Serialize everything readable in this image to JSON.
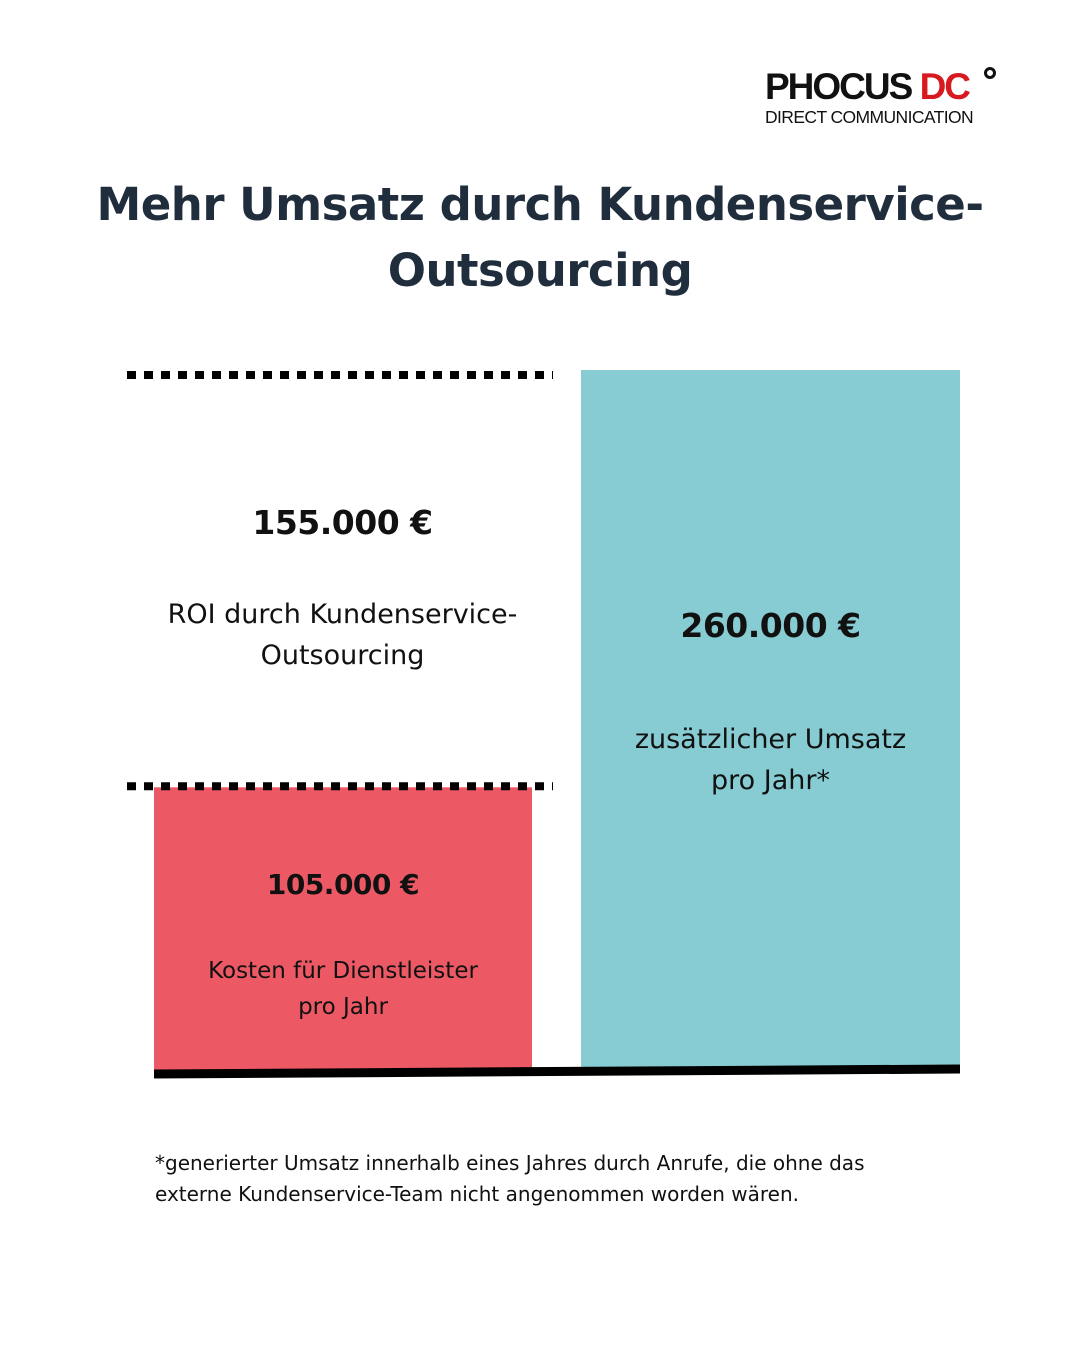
{
  "brand": {
    "name_main": "PHOCUS ",
    "name_accent": "DC",
    "tagline": "DIRECT COMMUNICATION",
    "accent_color": "#d71920"
  },
  "title": "Mehr Umsatz durch Kundenservice-Outsourcing",
  "chart_data": {
    "type": "bar",
    "title": "Mehr Umsatz durch Kundenservice-Outsourcing",
    "currency": "€",
    "ylim": [
      0,
      260000
    ],
    "categories": [
      "Kosten für Dienstleister pro Jahr",
      "zusätzlicher Umsatz pro Jahr*"
    ],
    "values": [
      105000,
      260000
    ],
    "colors": [
      "#ec5964",
      "#87ccd3"
    ],
    "series": [
      {
        "name": "Kosten",
        "value": 105000,
        "label": "105.000 €",
        "description_lines": [
          "Kosten für Dienstleister",
          "pro Jahr"
        ],
        "color": "#ec5964"
      },
      {
        "name": "Umsatz",
        "value": 260000,
        "label": "260.000 €",
        "description_lines": [
          "zusätzlicher Umsatz",
          "pro Jahr*"
        ],
        "color": "#87ccd3"
      }
    ],
    "annotation": {
      "value": 155000,
      "label": "155.000 €",
      "description_lines": [
        "ROI durch Kundenservice-",
        "Outsourcing"
      ],
      "from_value": 105000,
      "to_value": 260000
    },
    "grid": false,
    "legend": "none"
  },
  "footnote_lines": [
    "*generierter Umsatz innerhalb eines Jahres durch Anrufe, die ohne das",
    "externe Kundenservice-Team nicht angenommen worden wären."
  ]
}
